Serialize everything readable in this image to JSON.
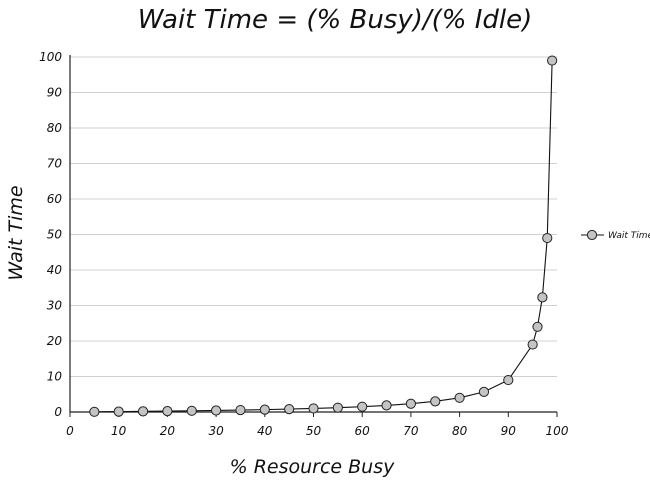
{
  "chart_data": {
    "type": "line",
    "title": "Wait Time = (% Busy)/(% Idle)",
    "xlabel": "%  Resource Busy",
    "ylabel": "Wait Time",
    "xlim": [
      0,
      100
    ],
    "ylim": [
      0,
      100
    ],
    "x_ticks": [
      0,
      10,
      20,
      30,
      40,
      50,
      60,
      70,
      80,
      90,
      100
    ],
    "y_ticks": [
      0,
      10,
      20,
      30,
      40,
      50,
      60,
      70,
      80,
      90,
      100
    ],
    "grid": "horizontal",
    "legend_position": "right",
    "series": [
      {
        "name": "Wait Time",
        "color": "#c4c4c4",
        "x": [
          5,
          10,
          15,
          20,
          25,
          30,
          35,
          40,
          45,
          50,
          55,
          60,
          65,
          70,
          75,
          80,
          85,
          90,
          95,
          96,
          97,
          98,
          99
        ],
        "y": [
          0.05,
          0.11,
          0.18,
          0.25,
          0.33,
          0.43,
          0.54,
          0.67,
          0.82,
          1,
          1.22,
          1.5,
          1.86,
          2.33,
          3,
          4,
          5.67,
          9,
          19,
          24,
          32.3,
          49,
          99
        ]
      }
    ]
  }
}
